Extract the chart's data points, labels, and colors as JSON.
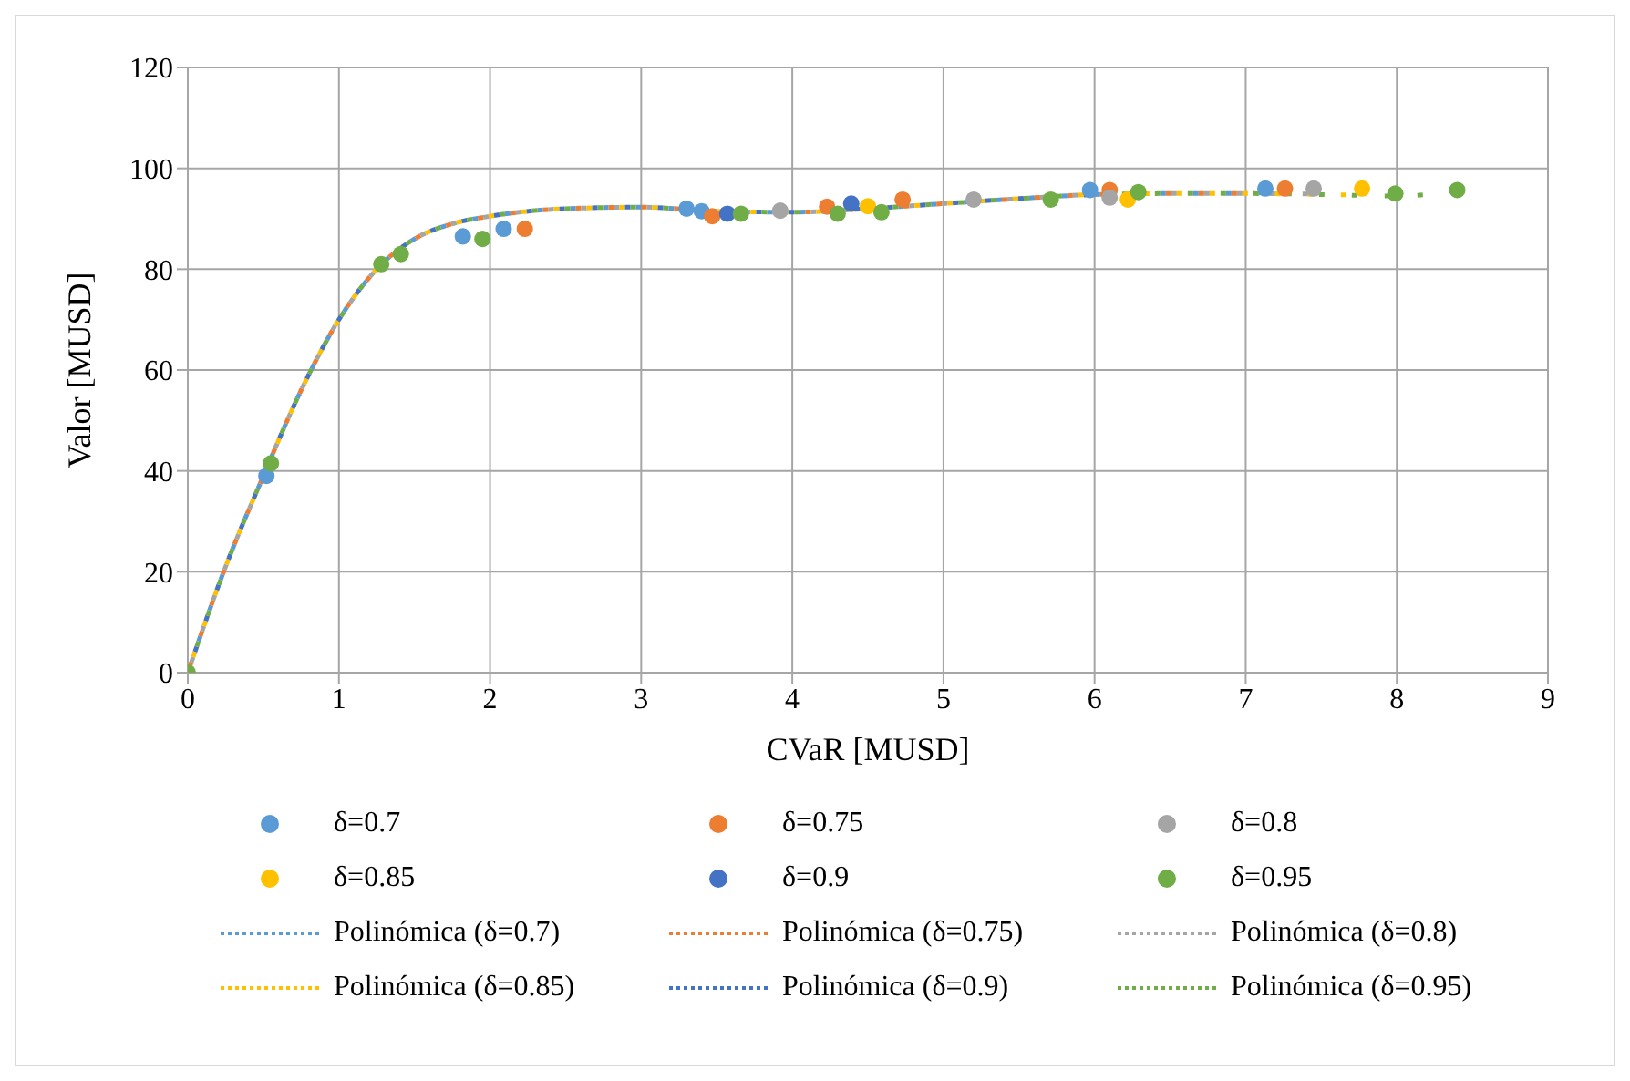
{
  "chart_data": {
    "type": "scatter",
    "xlabel": "CVaR  [MUSD]",
    "ylabel": "Valor  [MUSD]",
    "xlim": [
      0,
      9
    ],
    "xticks": [
      0,
      1,
      2,
      3,
      4,
      5,
      6,
      7,
      8,
      9
    ],
    "ylim": [
      0,
      120
    ],
    "yticks": [
      0,
      20,
      40,
      60,
      80,
      100,
      120
    ],
    "grid": true,
    "legend": "bottom",
    "marker": "circle",
    "series": [
      {
        "name": "δ=0.7",
        "color": "#5b9bd5",
        "x": [
          0.52,
          1.82,
          2.09,
          3.3,
          3.4,
          5.97,
          7.13
        ],
        "values": [
          39,
          86.5,
          88,
          92,
          91.5,
          95.7,
          96
        ]
      },
      {
        "name": "δ=0.75",
        "color": "#ed7d31",
        "x": [
          2.23,
          3.47,
          4.23,
          4.73,
          6.1,
          7.26
        ],
        "values": [
          88,
          90.5,
          92.4,
          93.8,
          95.7,
          96
        ]
      },
      {
        "name": "δ=0.8",
        "color": "#a5a5a5",
        "x": [
          3.92,
          5.2,
          6.1,
          7.45
        ],
        "values": [
          91.6,
          93.8,
          94.2,
          96
        ]
      },
      {
        "name": "δ=0.85",
        "color": "#ffc000",
        "x": [
          4.5,
          6.22,
          7.77
        ],
        "values": [
          92.5,
          93.8,
          96
        ]
      },
      {
        "name": "δ=0.9",
        "color": "#4472c4",
        "x": [
          3.57,
          4.39
        ],
        "values": [
          91,
          93
        ]
      },
      {
        "name": "δ=0.95",
        "color": "#70ad47",
        "x": [
          0,
          0.55,
          1.28,
          1.41,
          1.95,
          3.66,
          4.3,
          4.59,
          5.71,
          6.29,
          7.99,
          8.4
        ],
        "values": [
          0,
          41.5,
          81,
          83,
          86,
          91,
          91,
          91.3,
          93.8,
          95.3,
          95,
          95.7
        ]
      },
      {
        "name": "Polinómica (δ=0.7)",
        "type": "line",
        "marker": "none",
        "line_style": "dotted",
        "color": "#5b9bd5",
        "x": [
          0,
          0.25,
          0.5,
          0.75,
          1,
          1.25,
          1.5,
          1.75,
          2,
          2.5,
          3,
          3.5,
          4,
          4.5,
          5,
          5.5,
          6,
          6.5,
          7,
          7.13
        ],
        "values": [
          0,
          21,
          39,
          56,
          70,
          80,
          86,
          89,
          90.5,
          92,
          92.3,
          91.5,
          91.3,
          92,
          93,
          94,
          94.8,
          95,
          95,
          95.2
        ]
      },
      {
        "name": "Polinómica (δ=0.75)",
        "type": "line",
        "marker": "none",
        "line_style": "dotted",
        "color": "#ed7d31",
        "x": [
          0,
          0.25,
          0.5,
          0.75,
          1,
          1.25,
          1.5,
          1.75,
          2,
          2.5,
          3,
          3.5,
          4,
          4.5,
          5,
          5.5,
          6,
          6.5,
          7,
          7.26
        ],
        "values": [
          0,
          21,
          39,
          56,
          70,
          80,
          86,
          89,
          90.5,
          92,
          92.3,
          91.5,
          91.3,
          92,
          93,
          94,
          94.8,
          95,
          95,
          95.1
        ]
      },
      {
        "name": "Polinómica (δ=0.8)",
        "type": "line",
        "marker": "none",
        "line_style": "dotted",
        "color": "#a5a5a5",
        "x": [
          0,
          0.25,
          0.5,
          0.75,
          1,
          1.25,
          1.5,
          1.75,
          2,
          2.5,
          3,
          3.5,
          4,
          4.5,
          5,
          5.5,
          6,
          6.5,
          7,
          7.45
        ],
        "values": [
          0,
          21,
          39,
          56,
          70,
          80,
          86,
          89,
          90.5,
          92,
          92.3,
          91.5,
          91.3,
          92,
          93,
          94,
          94.8,
          95,
          95,
          94.9
        ]
      },
      {
        "name": "Polinómica (δ=0.85)",
        "type": "line",
        "marker": "none",
        "line_style": "dotted",
        "color": "#ffc000",
        "x": [
          0,
          0.25,
          0.5,
          0.75,
          1,
          1.25,
          1.5,
          1.75,
          2,
          2.5,
          3,
          3.5,
          4,
          4.5,
          5,
          5.5,
          6,
          6.5,
          7,
          7.5,
          7.77
        ],
        "values": [
          0,
          21,
          39,
          56,
          70,
          80,
          86,
          89,
          90.5,
          92,
          92.3,
          91.5,
          91.3,
          92,
          93,
          94,
          94.8,
          95,
          95,
          94.8,
          94.7
        ]
      },
      {
        "name": "Polinómica (δ=0.9)",
        "type": "line",
        "marker": "none",
        "line_style": "dotted",
        "color": "#4472c4",
        "x": [
          0,
          0.25,
          0.5,
          0.75,
          1,
          1.25,
          1.5,
          1.75,
          2,
          2.5,
          3,
          3.5,
          4,
          4.5,
          5,
          5.5,
          6
        ],
        "values": [
          0,
          21,
          39,
          56,
          70,
          80,
          86,
          89,
          90.5,
          92,
          92.3,
          91.5,
          91.3,
          92,
          93,
          94,
          94.8
        ]
      },
      {
        "name": "Polinómica (δ=0.95)",
        "type": "line",
        "marker": "none",
        "line_style": "dotted",
        "color": "#70ad47",
        "x": [
          0,
          0.25,
          0.5,
          0.75,
          1,
          1.25,
          1.5,
          1.75,
          2,
          2.5,
          3,
          3.5,
          4,
          4.5,
          5,
          5.5,
          6,
          6.5,
          7,
          7.5,
          8,
          8.4
        ],
        "values": [
          0,
          21,
          39,
          56,
          70,
          80,
          86,
          89,
          90.5,
          92,
          92.3,
          91.5,
          91.3,
          92,
          93,
          94,
          94.8,
          95,
          95,
          94.8,
          94.5,
          95.5
        ]
      }
    ]
  }
}
